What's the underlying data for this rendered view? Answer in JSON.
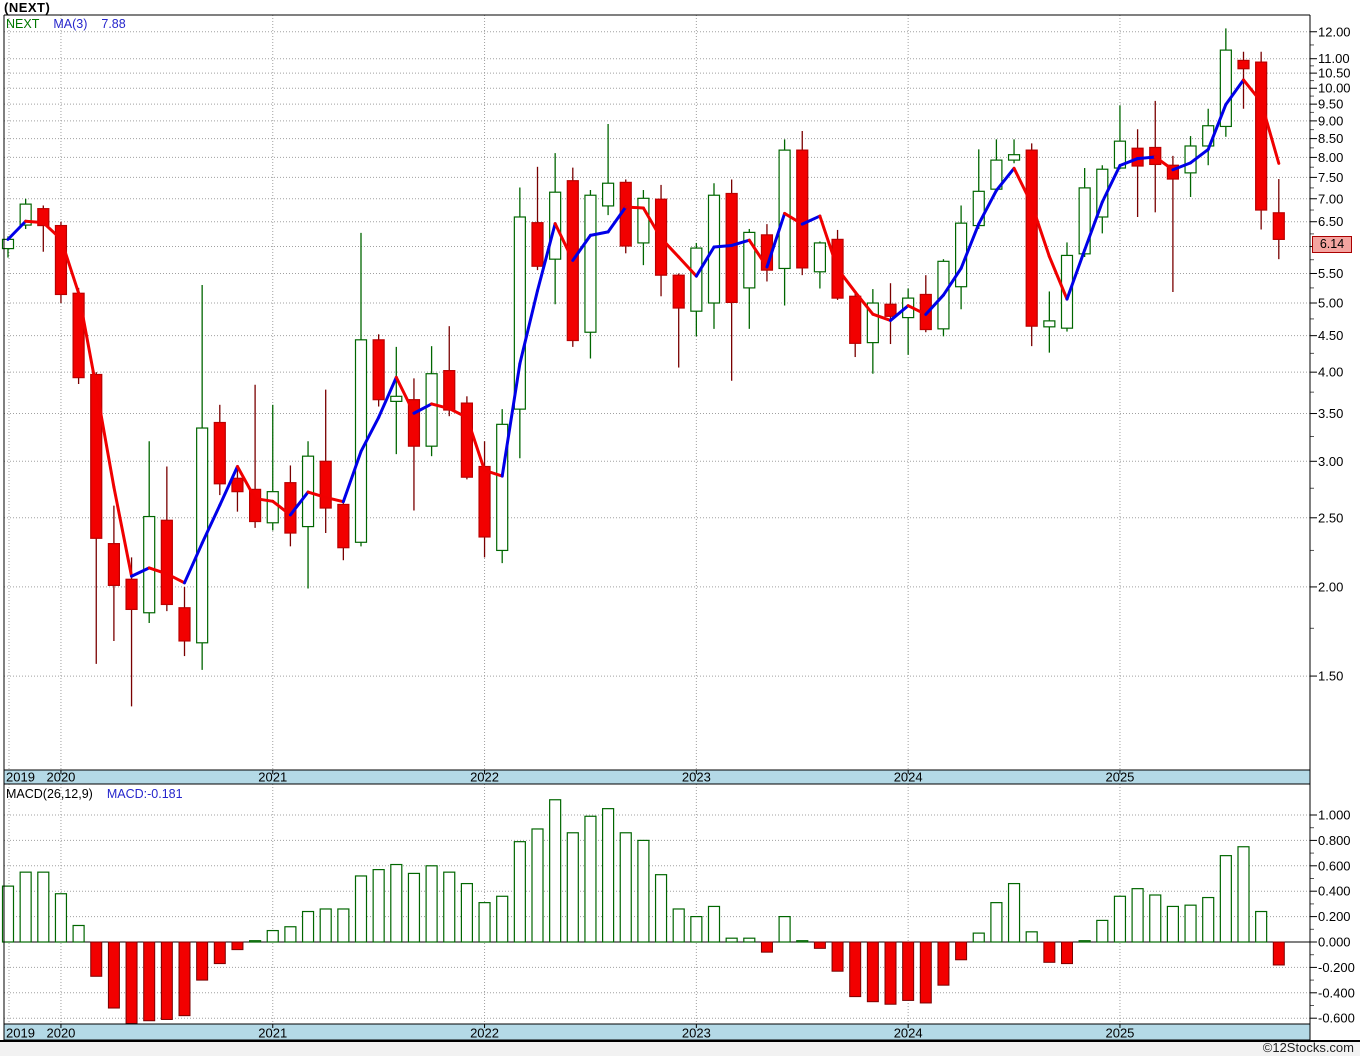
{
  "window": {
    "title": "(NEXT)"
  },
  "price_panel": {
    "legend": {
      "symbol": "NEXT",
      "ma_label": "MA(3)",
      "ma_value": "7.88"
    },
    "axis_ticks": [
      {
        "v": 12,
        "label": "12.00"
      },
      {
        "v": 11,
        "label": "11.00"
      },
      {
        "v": 10.5,
        "label": "10.50"
      },
      {
        "v": 10,
        "label": "10.00"
      },
      {
        "v": 9.5,
        "label": "9.50"
      },
      {
        "v": 9,
        "label": "9.00"
      },
      {
        "v": 8.5,
        "label": "8.50"
      },
      {
        "v": 8,
        "label": "8.00"
      },
      {
        "v": 7.5,
        "label": "7.50"
      },
      {
        "v": 7,
        "label": "7.00"
      },
      {
        "v": 6.5,
        "label": "6.50"
      },
      {
        "v": 6,
        "label": ""
      },
      {
        "v": 5.5,
        "label": "5.50"
      },
      {
        "v": 5,
        "label": "5.00"
      },
      {
        "v": 4.5,
        "label": "4.50"
      },
      {
        "v": 4,
        "label": "4.00"
      },
      {
        "v": 3.5,
        "label": "3.50"
      },
      {
        "v": 3,
        "label": "3.00"
      },
      {
        "v": 2.5,
        "label": "2.50"
      },
      {
        "v": 2,
        "label": "2.00"
      },
      {
        "v": 1.5,
        "label": "1.50"
      }
    ],
    "last_price_badge": "6.14"
  },
  "macd_panel": {
    "legend": {
      "indicator": "MACD(26,12,9)",
      "value_label": "MACD:-0.181"
    },
    "axis_ticks": [
      {
        "v": 1.0,
        "label": "1.000"
      },
      {
        "v": 0.8,
        "label": "0.800"
      },
      {
        "v": 0.6,
        "label": "0.600"
      },
      {
        "v": 0.4,
        "label": "0.400"
      },
      {
        "v": 0.2,
        "label": "0.200"
      },
      {
        "v": 0.0,
        "label": "0.000"
      },
      {
        "v": -0.2,
        "label": "-0.200"
      },
      {
        "v": -0.4,
        "label": "-0.400"
      },
      {
        "v": -0.6,
        "label": "-0.600"
      }
    ]
  },
  "timeline": {
    "years": [
      "2019",
      "2020",
      "2021",
      "2022",
      "2023",
      "2024",
      "2025"
    ]
  },
  "watermark": "©12Stocks.com",
  "colors": {
    "up_stroke": "#006600",
    "up_fill": "#ffffff",
    "down_stroke": "#bb0000",
    "down_fill": "#f20000",
    "wick_up": "#006600",
    "wick_down": "#7a0000",
    "ma_up": "#0000e8",
    "ma_down": "#f00000",
    "grid": "#a0a0a0",
    "band_fill": "#b4d9e6",
    "badge_fill": "#f4a4a0",
    "legend_green": "#007700",
    "legend_blue": "#2626cc"
  },
  "chart_data": {
    "type": "candlestick",
    "title": "(NEXT)",
    "timeframe": "monthly",
    "start_month": "2019-10",
    "end_month": "2025-10",
    "price_scale": "log",
    "price_axis_range": [
      1.11,
      12.67
    ],
    "overlays": [
      "MA(3) trend-colored (blue rising / red falling), last value 7.88"
    ],
    "last_close": 6.14,
    "ohlc": [
      [
        5.96,
        6.2,
        5.79,
        6.14
      ],
      [
        6.43,
        7.0,
        6.35,
        6.88
      ],
      [
        6.78,
        6.85,
        5.9,
        6.42
      ],
      [
        6.42,
        6.5,
        5.0,
        5.14
      ],
      [
        5.16,
        5.25,
        3.85,
        3.93
      ],
      [
        3.97,
        4.0,
        1.56,
        2.34
      ],
      [
        2.3,
        2.6,
        1.68,
        2.01
      ],
      [
        2.05,
        2.2,
        1.36,
        1.86
      ],
      [
        1.84,
        3.2,
        1.78,
        2.51
      ],
      [
        2.48,
        2.95,
        1.85,
        1.89
      ],
      [
        1.87,
        2.0,
        1.6,
        1.68
      ],
      [
        1.67,
        5.3,
        1.53,
        3.34
      ],
      [
        3.4,
        3.6,
        2.69,
        2.79
      ],
      [
        2.84,
        2.95,
        2.55,
        2.72
      ],
      [
        2.74,
        3.84,
        2.42,
        2.47
      ],
      [
        2.46,
        3.6,
        2.4,
        2.72
      ],
      [
        2.8,
        2.96,
        2.28,
        2.38
      ],
      [
        2.43,
        3.2,
        1.99,
        3.05
      ],
      [
        3.0,
        3.78,
        2.38,
        2.58
      ],
      [
        2.61,
        2.65,
        2.18,
        2.27
      ],
      [
        2.31,
        6.27,
        2.28,
        4.44
      ],
      [
        4.44,
        4.52,
        3.58,
        3.66
      ],
      [
        3.64,
        4.34,
        3.07,
        3.7
      ],
      [
        3.66,
        3.92,
        2.56,
        3.15
      ],
      [
        3.15,
        4.35,
        3.05,
        3.98
      ],
      [
        4.02,
        4.64,
        3.47,
        3.54
      ],
      [
        3.62,
        3.7,
        2.83,
        2.85
      ],
      [
        2.95,
        3.2,
        2.2,
        2.35
      ],
      [
        2.25,
        3.55,
        2.16,
        3.38
      ],
      [
        3.55,
        7.26,
        3.03,
        6.6
      ],
      [
        6.48,
        7.76,
        5.56,
        5.63
      ],
      [
        5.76,
        8.11,
        4.98,
        7.15
      ],
      [
        7.42,
        7.74,
        4.34,
        4.43
      ],
      [
        4.55,
        7.2,
        4.18,
        7.08
      ],
      [
        6.84,
        8.91,
        6.64,
        7.36
      ],
      [
        7.38,
        7.45,
        5.87,
        6.01
      ],
      [
        6.07,
        7.2,
        5.65,
        7.01
      ],
      [
        6.99,
        7.32,
        5.11,
        5.47
      ],
      [
        5.47,
        5.5,
        4.06,
        4.92
      ],
      [
        4.87,
        6.07,
        4.49,
        5.97
      ],
      [
        5.0,
        7.36,
        4.6,
        7.08
      ],
      [
        7.12,
        7.45,
        3.89,
        5.01
      ],
      [
        5.25,
        6.35,
        4.6,
        6.28
      ],
      [
        6.23,
        6.45,
        5.36,
        5.56
      ],
      [
        5.59,
        8.48,
        4.96,
        8.19
      ],
      [
        8.19,
        8.71,
        5.47,
        5.6
      ],
      [
        5.53,
        6.1,
        5.24,
        6.07
      ],
      [
        6.14,
        6.33,
        5.05,
        5.08
      ],
      [
        5.11,
        5.15,
        4.2,
        4.39
      ],
      [
        4.4,
        5.23,
        3.98,
        5.0
      ],
      [
        4.98,
        5.33,
        4.38,
        4.79
      ],
      [
        4.77,
        5.24,
        4.23,
        5.08
      ],
      [
        5.14,
        5.47,
        4.55,
        4.59
      ],
      [
        4.6,
        5.76,
        4.49,
        5.72
      ],
      [
        5.27,
        6.85,
        4.9,
        6.47
      ],
      [
        6.42,
        8.21,
        6.35,
        7.17
      ],
      [
        7.22,
        8.48,
        7.15,
        7.93
      ],
      [
        7.93,
        8.48,
        7.85,
        8.07
      ],
      [
        8.19,
        8.37,
        4.35,
        4.64
      ],
      [
        4.63,
        5.19,
        4.26,
        4.72
      ],
      [
        4.61,
        6.08,
        4.56,
        5.83
      ],
      [
        5.86,
        7.73,
        5.8,
        7.25
      ],
      [
        6.6,
        7.8,
        6.26,
        7.7
      ],
      [
        7.73,
        9.46,
        7.7,
        8.43
      ],
      [
        8.24,
        8.76,
        6.6,
        7.78
      ],
      [
        8.26,
        9.6,
        6.7,
        7.82
      ],
      [
        7.8,
        8.04,
        5.18,
        7.46
      ],
      [
        7.61,
        8.57,
        7.04,
        8.3
      ],
      [
        8.3,
        9.36,
        7.8,
        8.86
      ],
      [
        8.84,
        12.13,
        8.55,
        11.31
      ],
      [
        10.94,
        11.25,
        9.36,
        10.65
      ],
      [
        10.88,
        11.25,
        6.34,
        6.75
      ],
      [
        6.69,
        7.46,
        5.76,
        6.14
      ]
    ],
    "macd_histogram": {
      "name": "MACD(26,12,9)",
      "axis_range": [
        -0.65,
        1.24
      ],
      "last_value": -0.181,
      "values": [
        0.44,
        0.55,
        0.55,
        0.38,
        0.13,
        -0.27,
        -0.52,
        -0.65,
        -0.62,
        -0.61,
        -0.58,
        -0.3,
        -0.17,
        -0.06,
        0.01,
        0.09,
        0.12,
        0.24,
        0.26,
        0.26,
        0.52,
        0.57,
        0.61,
        0.54,
        0.6,
        0.55,
        0.46,
        0.31,
        0.36,
        0.79,
        0.89,
        1.12,
        0.86,
        0.99,
        1.05,
        0.86,
        0.8,
        0.53,
        0.26,
        0.2,
        0.28,
        0.03,
        0.03,
        -0.08,
        0.2,
        0.01,
        -0.05,
        -0.23,
        -0.43,
        -0.47,
        -0.49,
        -0.46,
        -0.48,
        -0.34,
        -0.14,
        0.07,
        0.31,
        0.46,
        0.08,
        -0.16,
        -0.17,
        0.01,
        0.17,
        0.36,
        0.42,
        0.37,
        0.28,
        0.29,
        0.35,
        0.68,
        0.75,
        0.24,
        -0.181
      ]
    },
    "x_axis_years": [
      "2019",
      "2020",
      "2021",
      "2022",
      "2023",
      "2024",
      "2025"
    ]
  }
}
